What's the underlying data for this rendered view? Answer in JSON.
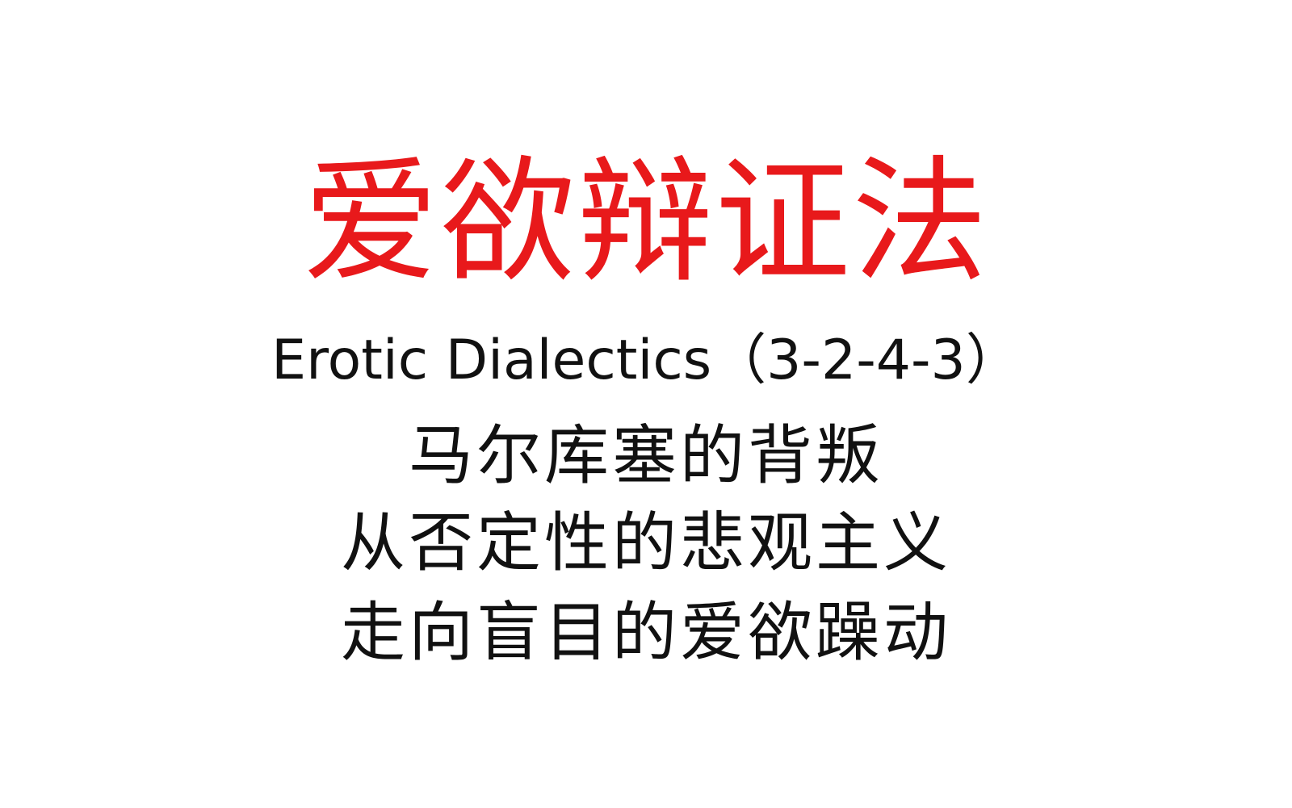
{
  "document": {
    "title": "爱欲辩证法",
    "subtitle": "Erotic Dialectics（3-2-4-3）",
    "lines": [
      "马尔库塞的背叛",
      "从否定性的悲观主义",
      "走向盲目的爱欲躁动"
    ]
  },
  "colors": {
    "title": "#e8191b",
    "text": "#111111",
    "background": "#ffffff"
  }
}
